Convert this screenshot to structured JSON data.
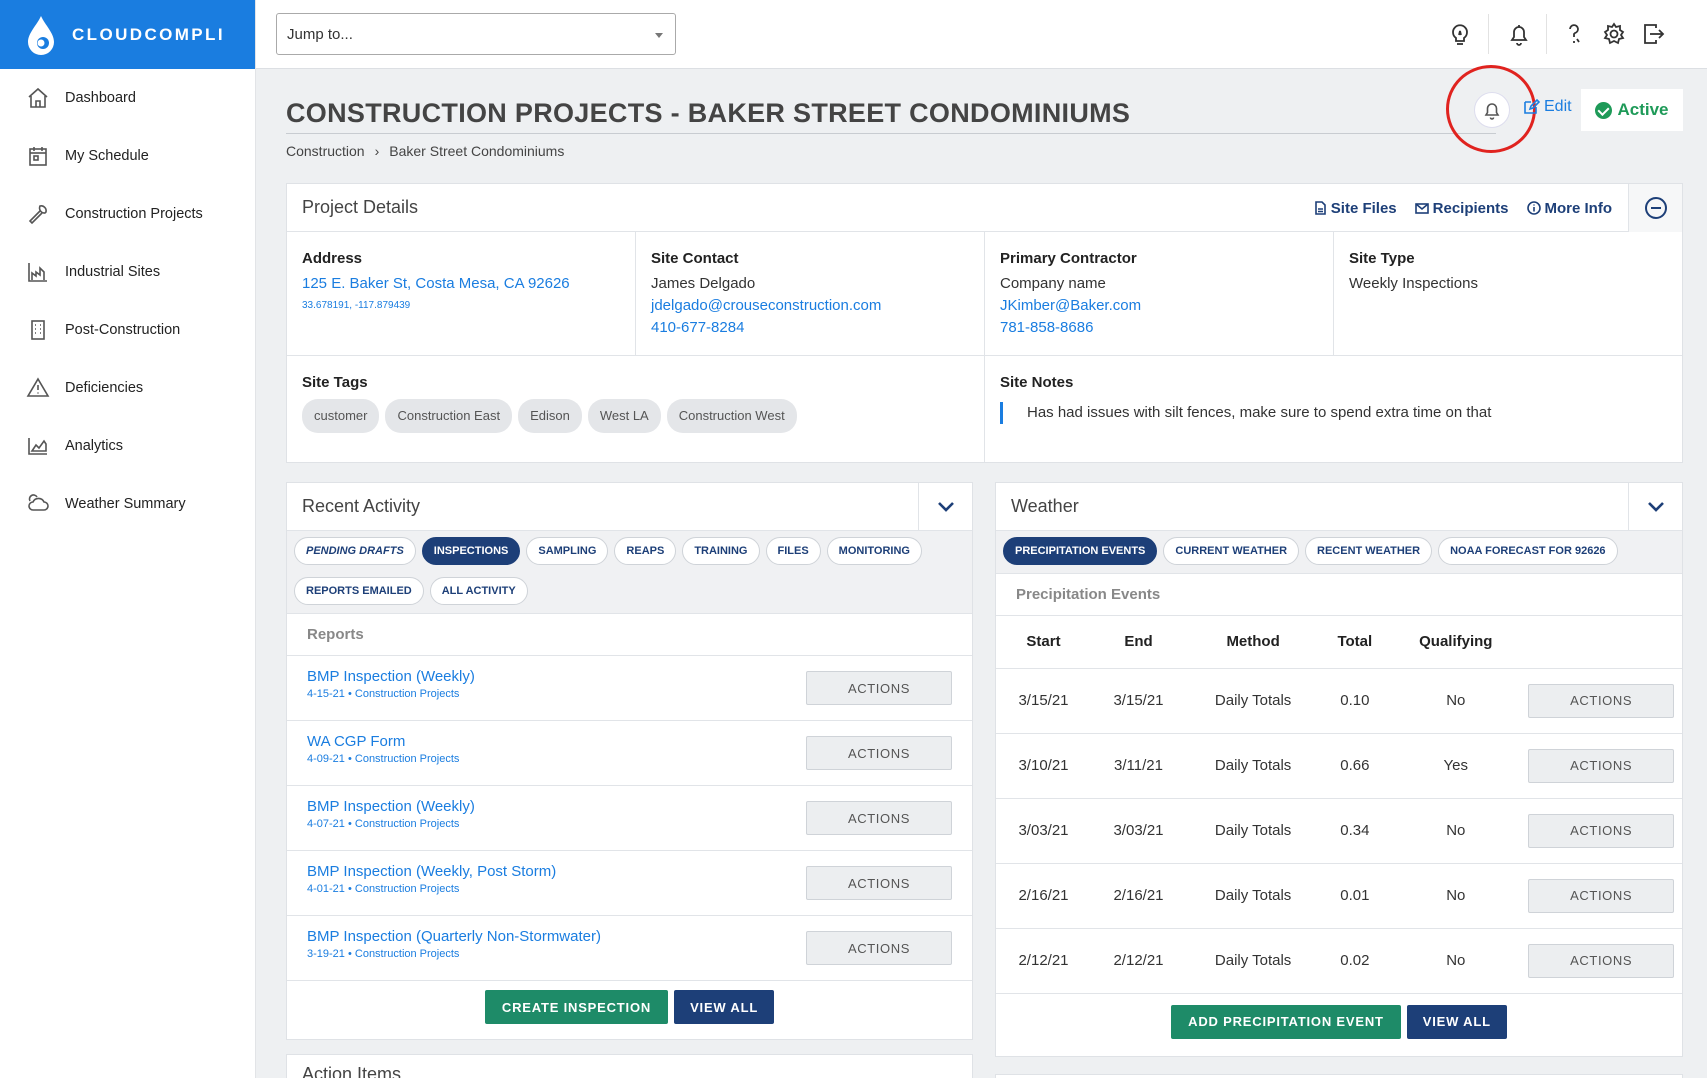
{
  "app": {
    "brand": "CLOUDCOMPLI"
  },
  "sidebar": {
    "items": [
      {
        "label": "Dashboard",
        "icon": "home-icon"
      },
      {
        "label": "My Schedule",
        "icon": "calendar-icon"
      },
      {
        "label": "Construction Projects",
        "icon": "wrench-icon"
      },
      {
        "label": "Industrial Sites",
        "icon": "factory-icon"
      },
      {
        "label": "Post-Construction",
        "icon": "building-icon"
      },
      {
        "label": "Deficiencies",
        "icon": "warning-icon"
      },
      {
        "label": "Analytics",
        "icon": "chart-icon"
      },
      {
        "label": "Weather Summary",
        "icon": "cloud-icon"
      }
    ]
  },
  "topbar": {
    "jump_placeholder": "Jump to..."
  },
  "header": {
    "title": "CONSTRUCTION PROJECTS - BAKER STREET CONDOMINIUMS",
    "breadcrumb": [
      "Construction",
      "Baker Street Condominiums"
    ],
    "breadcrumb_sep": "›",
    "edit_label": "Edit",
    "status_label": "Active",
    "status_color": "#1e9a58",
    "highlight_color": "#e0231f"
  },
  "details": {
    "title": "Project Details",
    "links": [
      "Site Files",
      "Recipients",
      "More Info"
    ],
    "address": {
      "label": "Address",
      "line": "125 E. Baker St, Costa Mesa, CA 92626",
      "coords": "33.678191, -117.879439"
    },
    "site_contact": {
      "label": "Site Contact",
      "name": "James Delgado",
      "email": "jdelgado@crouseconstruction.com",
      "phone": "410-677-8284"
    },
    "primary_contractor": {
      "label": "Primary Contractor",
      "name": "Company name",
      "email": "JKimber@Baker.com",
      "phone": "781-858-8686"
    },
    "site_type": {
      "label": "Site Type",
      "value": "Weekly Inspections"
    },
    "site_tags": {
      "label": "Site Tags",
      "tags": [
        "customer",
        "Construction East",
        "Edison",
        "West LA",
        "Construction West"
      ]
    },
    "site_notes": {
      "label": "Site Notes",
      "text": "Has had issues with silt fences, make sure to spend extra time on that"
    }
  },
  "activity": {
    "title": "Recent Activity",
    "tabs": [
      "PENDING DRAFTS",
      "INSPECTIONS",
      "SAMPLING",
      "REAPS",
      "TRAINING",
      "FILES",
      "MONITORING",
      "REPORTS EMAILED",
      "ALL ACTIVITY"
    ],
    "active_tab": "INSPECTIONS",
    "section": "Reports",
    "reports": [
      {
        "title": "BMP Inspection (Weekly)",
        "meta": "4-15-21 • Construction Projects"
      },
      {
        "title": "WA CGP Form",
        "meta": "4-09-21 • Construction Projects"
      },
      {
        "title": "BMP Inspection (Weekly)",
        "meta": "4-07-21 • Construction Projects"
      },
      {
        "title": "BMP Inspection (Weekly, Post Storm)",
        "meta": "4-01-21 • Construction Projects"
      },
      {
        "title": "BMP Inspection (Quarterly Non-Stormwater)",
        "meta": "3-19-21 • Construction Projects"
      }
    ],
    "actions_label": "ACTIONS",
    "create_label": "CREATE INSPECTION",
    "view_all_label": "VIEW ALL"
  },
  "weather": {
    "title": "Weather",
    "tabs": [
      "PRECIPITATION EVENTS",
      "CURRENT WEATHER",
      "RECENT WEATHER",
      "NOAA FORECAST FOR 92626"
    ],
    "active_tab": "PRECIPITATION EVENTS",
    "section": "Precipitation Events",
    "columns": [
      "Start",
      "End",
      "Method",
      "Total",
      "Qualifying"
    ],
    "rows": [
      [
        "3/15/21",
        "3/15/21",
        "Daily Totals",
        "0.10",
        "No"
      ],
      [
        "3/10/21",
        "3/11/21",
        "Daily Totals",
        "0.66",
        "Yes"
      ],
      [
        "3/03/21",
        "3/03/21",
        "Daily Totals",
        "0.34",
        "No"
      ],
      [
        "2/16/21",
        "2/16/21",
        "Daily Totals",
        "0.01",
        "No"
      ],
      [
        "2/12/21",
        "2/12/21",
        "Daily Totals",
        "0.02",
        "No"
      ]
    ],
    "actions_label": "ACTIONS",
    "add_label": "ADD PRECIPITATION EVENT",
    "view_all_label": "VIEW ALL"
  },
  "action_items": {
    "title": "Action Items"
  }
}
